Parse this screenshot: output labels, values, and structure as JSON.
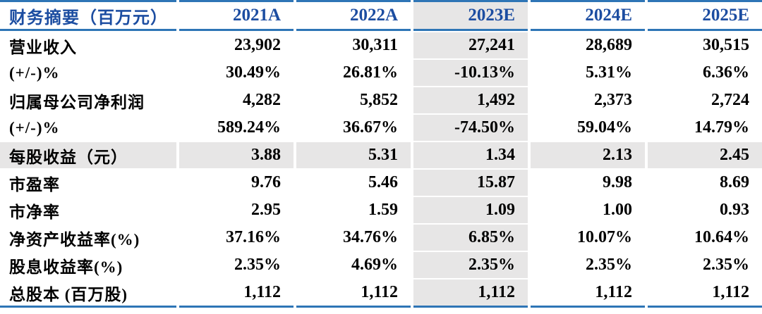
{
  "table": {
    "name": "financial-summary",
    "header": {
      "label": "财务摘要（百万元）",
      "columns": [
        "2021A",
        "2022A",
        "2023E",
        "2024E",
        "2025E"
      ]
    },
    "highlight_column_index": 2,
    "rows": [
      {
        "label": "营业收入",
        "values": [
          "23,902",
          "30,311",
          "27,241",
          "28,689",
          "30,515"
        ],
        "highlight": false
      },
      {
        "label": "(+/-)%",
        "values": [
          "30.49%",
          "26.81%",
          "-10.13%",
          "5.31%",
          "6.36%"
        ],
        "highlight": false
      },
      {
        "label": "归属母公司净利润",
        "values": [
          "4,282",
          "5,852",
          "1,492",
          "2,373",
          "2,724"
        ],
        "highlight": false
      },
      {
        "label": "(+/-)%",
        "values": [
          "589.24%",
          "36.67%",
          "-74.50%",
          "59.04%",
          "14.79%"
        ],
        "highlight": false
      },
      {
        "label": "每股收益（元）",
        "values": [
          "3.88",
          "5.31",
          "1.34",
          "2.13",
          "2.45"
        ],
        "highlight": true
      },
      {
        "label": "市盈率",
        "values": [
          "9.76",
          "5.46",
          "15.87",
          "9.98",
          "8.69"
        ],
        "highlight": false
      },
      {
        "label": "市净率",
        "values": [
          "2.95",
          "1.59",
          "1.09",
          "1.00",
          "0.93"
        ],
        "highlight": false
      },
      {
        "label": "净资产收益率(%)",
        "values": [
          "37.16%",
          "34.76%",
          "6.85%",
          "10.07%",
          "10.64%"
        ],
        "highlight": false
      },
      {
        "label": "股息收益率(%)",
        "values": [
          "2.35%",
          "4.69%",
          "2.35%",
          "2.35%",
          "2.35%"
        ],
        "highlight": false
      },
      {
        "label": "总股本 (百万股)",
        "values": [
          "1,112",
          "1,112",
          "1,112",
          "1,112",
          "1,112"
        ],
        "highlight": false
      }
    ],
    "colors": {
      "line_blue": "#2E75B6",
      "header_text": "#1C4DA1",
      "highlight_bg": "#E7E6E6",
      "text": "#000000"
    }
  }
}
